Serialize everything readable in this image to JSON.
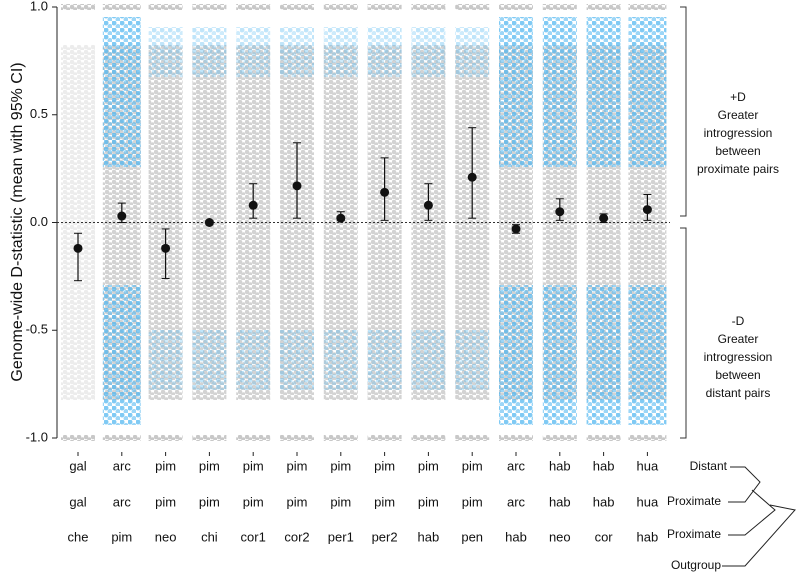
{
  "chart_data": {
    "type": "dotplot",
    "y_label": "Genome-wide D-statistic (mean with 95% CI)",
    "category_rows": [
      [
        "gal",
        "arc",
        "pim",
        "pim",
        "pim",
        "pim",
        "pim",
        "pim",
        "pim",
        "pim",
        "arc",
        "hab",
        "hab",
        "hua"
      ],
      [
        "gal",
        "arc",
        "pim",
        "pim",
        "pim",
        "pim",
        "pim",
        "pim",
        "pim",
        "pim",
        "arc",
        "hab",
        "hab",
        "hua"
      ],
      [
        "che",
        "pim",
        "neo",
        "chi",
        "cor1",
        "cor2",
        "per1",
        "per2",
        "hab",
        "pen",
        "hab",
        "neo",
        "cor",
        "hab"
      ]
    ],
    "tree_labels": [
      "Distant",
      "Proximate",
      "Proximate",
      "Outgroup"
    ],
    "means": [
      -0.12,
      0.03,
      -0.12,
      0.0,
      0.08,
      0.17,
      0.02,
      0.14,
      0.08,
      0.21,
      -0.03,
      0.05,
      0.02,
      0.06
    ],
    "ci_low": [
      -0.27,
      0.0,
      -0.26,
      -0.01,
      0.02,
      0.02,
      0.01,
      0.01,
      0.01,
      0.02,
      -0.05,
      0.01,
      0.0,
      0.01
    ],
    "ci_high": [
      -0.05,
      0.09,
      -0.03,
      0.01,
      0.18,
      0.37,
      0.05,
      0.3,
      0.18,
      0.44,
      -0.01,
      0.11,
      0.04,
      0.13
    ],
    "color": "#111111",
    "reference_line": 0,
    "ylim": [
      -1.0,
      1.0
    ],
    "yticks": [
      {
        "value": -1,
        "label": "-1.0"
      },
      {
        "value": -0.5,
        "label": "-0.5"
      },
      {
        "value": 0,
        "label": "0.0"
      },
      {
        "value": 0.5,
        "label": "0.5"
      },
      {
        "value": 1,
        "label": "1.0"
      }
    ],
    "annotations": [
      [
        "+D",
        "Greater",
        "introgression",
        "between",
        "proximate pairs"
      ],
      [
        "-D",
        "Greater",
        "introgression",
        "between",
        "distant pairs"
      ]
    ]
  }
}
